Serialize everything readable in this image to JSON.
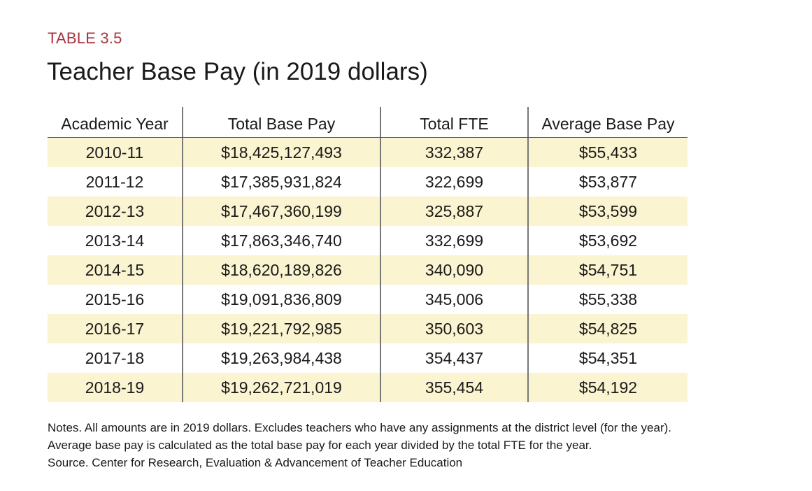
{
  "label": "TABLE 3.5",
  "title": "Teacher Base Pay (in 2019 dollars)",
  "table": {
    "headers": [
      "Academic Year",
      "Total Base Pay",
      "Total FTE",
      "Average Base Pay"
    ],
    "rows": [
      [
        "2010-11",
        "$18,425,127,493",
        "332,387",
        "$55,433"
      ],
      [
        "2011-12",
        "$17,385,931,824",
        "322,699",
        "$53,877"
      ],
      [
        "2012-13",
        "$17,467,360,199",
        "325,887",
        "$53,599"
      ],
      [
        "2013-14",
        "$17,863,346,740",
        "332,699",
        "$53,692"
      ],
      [
        "2014-15",
        "$18,620,189,826",
        "340,090",
        "$54,751"
      ],
      [
        "2015-16",
        "$19,091,836,809",
        "345,006",
        "$55,338"
      ],
      [
        "2016-17",
        "$19,221,792,985",
        "350,603",
        "$54,825"
      ],
      [
        "2017-18",
        "$19,263,984,438",
        "354,437",
        "$54,351"
      ],
      [
        "2018-19",
        "$19,262,721,019",
        "355,454",
        "$54,192"
      ]
    ],
    "row_shade_color": "#fbf4d0"
  },
  "notes": [
    "Notes. All amounts are in 2019 dollars. Excludes teachers who have any assignments at the district level (for the year).",
    "Average base pay is calculated as the total base pay for each year divided by the total FTE for the year.",
    "Source. Center for Research, Evaluation & Advancement of Teacher Education"
  ],
  "colors": {
    "label": "#a8343f",
    "text": "#1a1a1a"
  }
}
